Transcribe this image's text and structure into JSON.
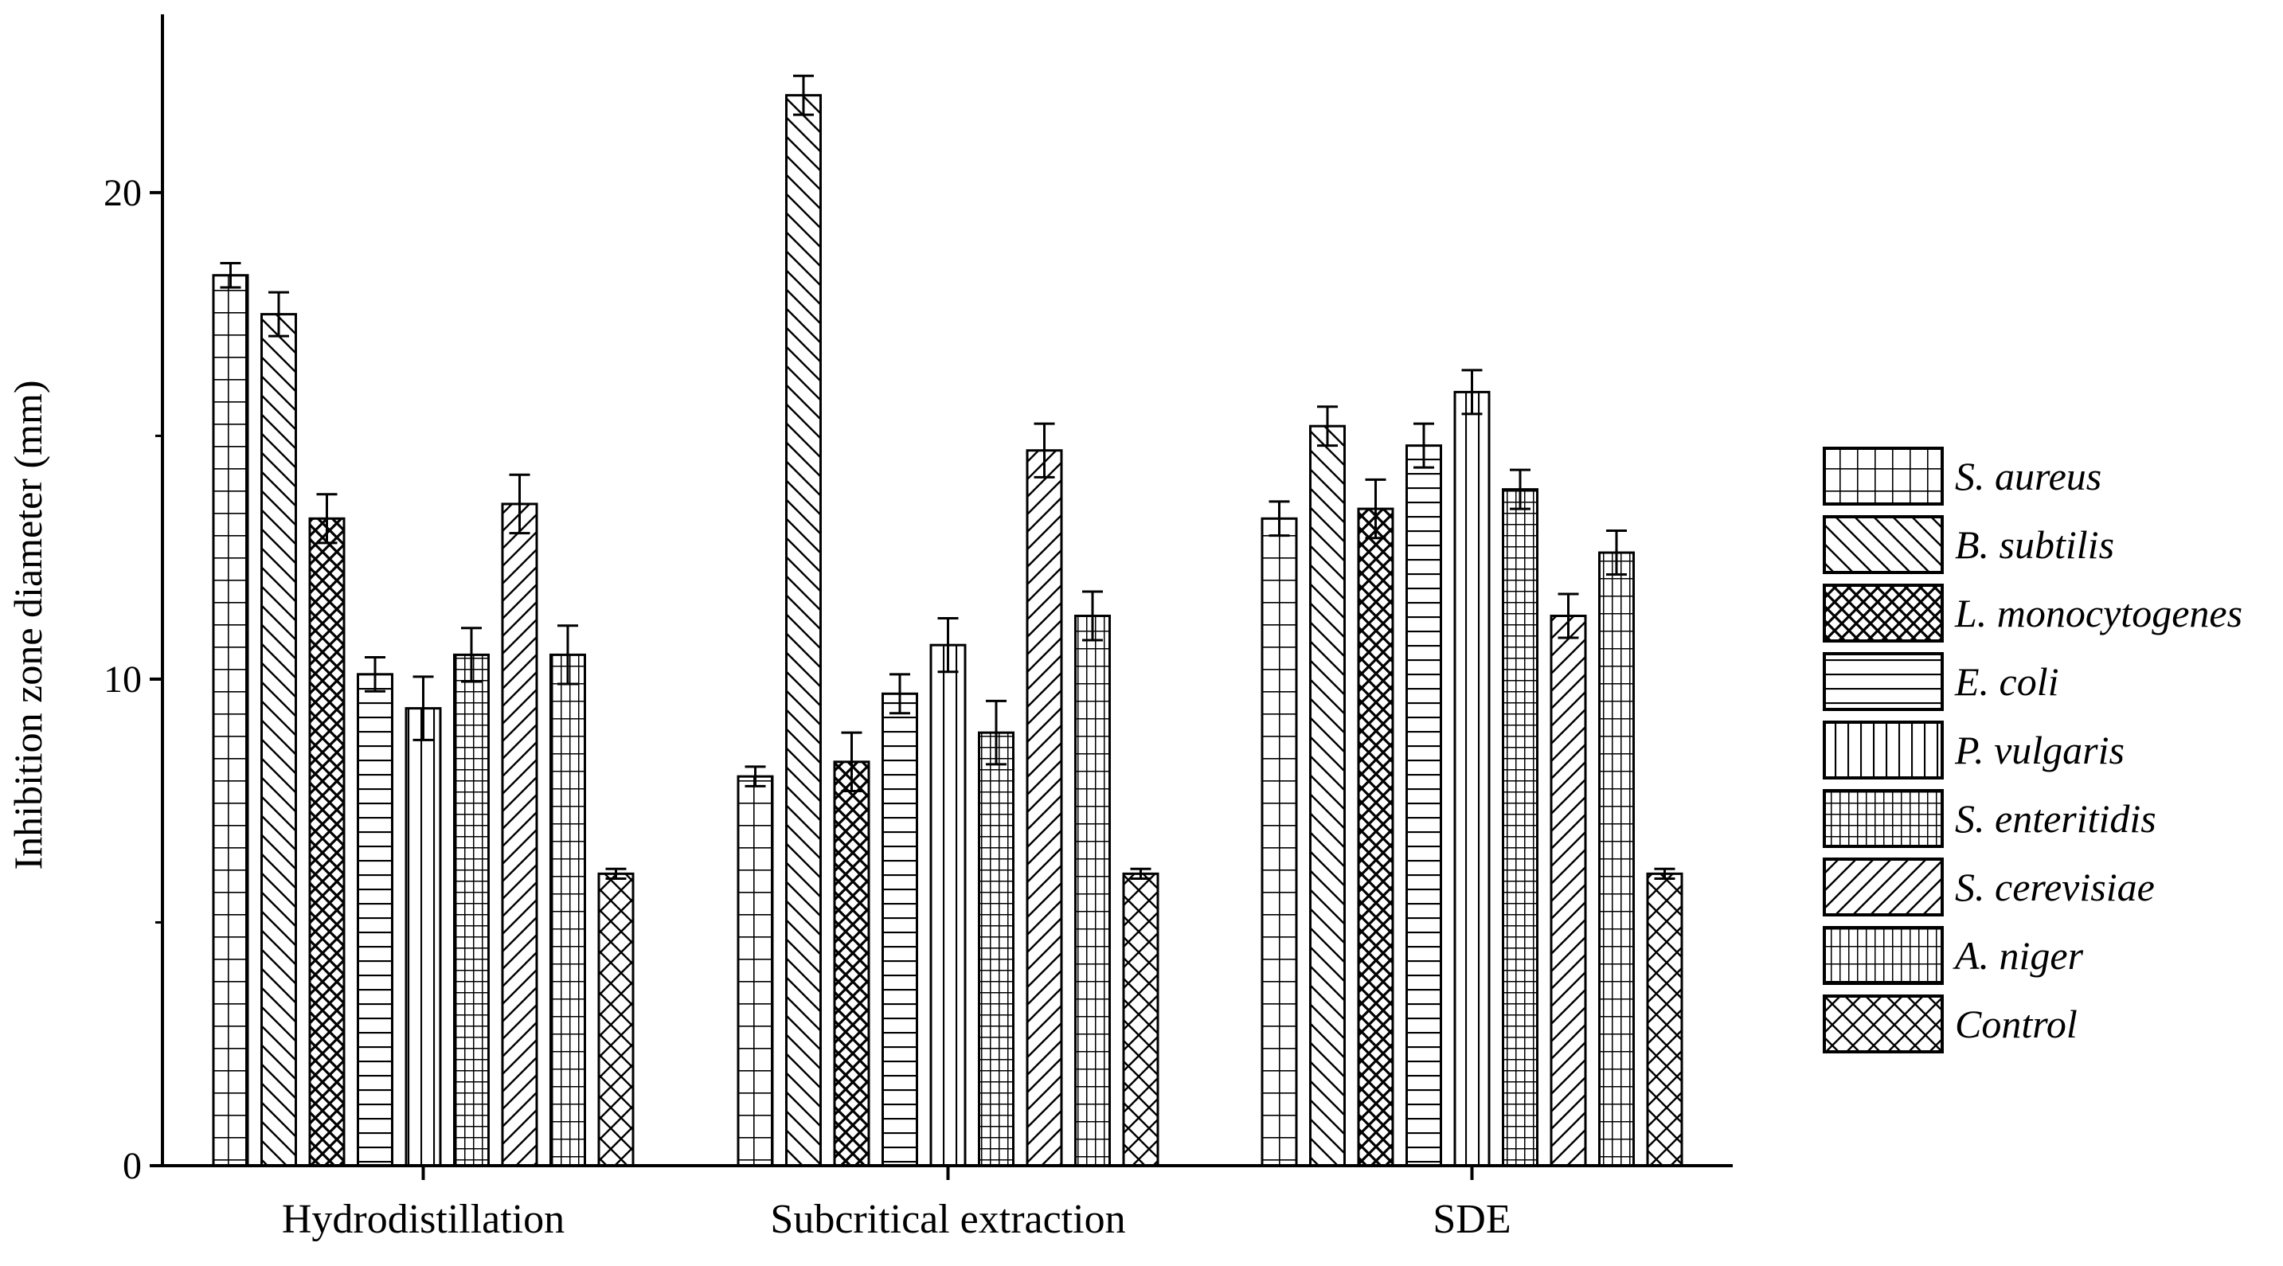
{
  "chart_data": {
    "type": "bar",
    "title": "",
    "xlabel": "",
    "ylabel": "Inhibition zone diameter (mm)",
    "ylim": [
      0,
      23.5
    ],
    "yticks": [
      "0",
      "10",
      "20"
    ],
    "grid": false,
    "legend_position": "right",
    "categories": [
      "Hydrodistillation",
      "Subcritical extraction",
      "SDE"
    ],
    "series": [
      {
        "name": "S. aureus",
        "pattern": "grid",
        "values": [
          18.3,
          8.0,
          13.3
        ],
        "errors": [
          0.25,
          0.2,
          0.35
        ]
      },
      {
        "name": "B. subtilis",
        "pattern": "backslash",
        "values": [
          17.5,
          22.0,
          15.2
        ],
        "errors": [
          0.45,
          0.4,
          0.4
        ]
      },
      {
        "name": "L. monocytogenes",
        "pattern": "crosshatch",
        "values": [
          13.3,
          8.3,
          13.5
        ],
        "errors": [
          0.5,
          0.6,
          0.6
        ]
      },
      {
        "name": "E. coli",
        "pattern": "horizontal",
        "values": [
          10.1,
          9.7,
          14.8
        ],
        "errors": [
          0.35,
          0.4,
          0.45
        ]
      },
      {
        "name": "P. vulgaris",
        "pattern": "vertical",
        "values": [
          9.4,
          10.7,
          15.9
        ],
        "errors": [
          0.65,
          0.55,
          0.45
        ]
      },
      {
        "name": "S. enteritidis",
        "pattern": "densegrid",
        "values": [
          10.5,
          8.9,
          13.9
        ],
        "errors": [
          0.55,
          0.65,
          0.4
        ]
      },
      {
        "name": "S. cerevisiae",
        "pattern": "slash",
        "values": [
          13.6,
          14.7,
          11.3
        ],
        "errors": [
          0.6,
          0.55,
          0.45
        ]
      },
      {
        "name": "A. niger",
        "pattern": "hgrid",
        "values": [
          10.5,
          11.3,
          12.6
        ],
        "errors": [
          0.6,
          0.5,
          0.45
        ]
      },
      {
        "name": "Control",
        "pattern": "diamond",
        "values": [
          6.0,
          6.0,
          6.0
        ],
        "errors": [
          0.1,
          0.1,
          0.1
        ]
      }
    ]
  }
}
